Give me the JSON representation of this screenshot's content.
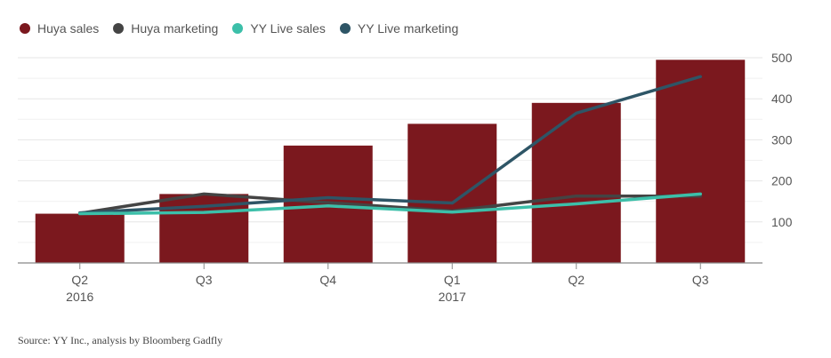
{
  "chart_data": {
    "type": "bar",
    "title": "",
    "xlabel": "",
    "ylabel": "",
    "categories": [
      "Q2",
      "Q3",
      "Q4",
      "Q1",
      "Q2",
      "Q3"
    ],
    "category_sublabels": [
      "2016",
      "",
      "",
      "2017",
      "",
      ""
    ],
    "ylim": [
      0,
      500
    ],
    "yticks": [
      100,
      200,
      300,
      400,
      500
    ],
    "grid": true,
    "legend_position": "top-left",
    "y_axis_side": "right",
    "series": [
      {
        "name": "Huya sales",
        "kind": "bar",
        "color": "#7b181e",
        "values": [
          120,
          168,
          286,
          339,
          390,
          495
        ]
      },
      {
        "name": "Huya marketing",
        "kind": "line",
        "color": "#444444",
        "values": [
          121,
          168,
          147,
          127,
          163,
          163
        ]
      },
      {
        "name": "YY Live sales",
        "kind": "line",
        "color": "#3cbfa9",
        "values": [
          120,
          123,
          139,
          124,
          144,
          168
        ]
      },
      {
        "name": "YY Live marketing",
        "kind": "line",
        "color": "#2e5566",
        "values": [
          122,
          138,
          159,
          146,
          365,
          454
        ]
      }
    ]
  },
  "source": "Source: YY Inc., analysis by Bloomberg Gadfly"
}
